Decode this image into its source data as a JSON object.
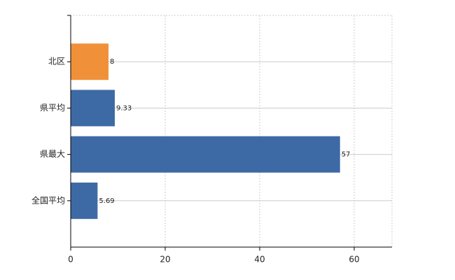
{
  "chart_data": {
    "type": "bar",
    "orientation": "horizontal",
    "categories": [
      "北区",
      "県平均",
      "県最大",
      "全国平均"
    ],
    "values": [
      8,
      9.33,
      57,
      5.69
    ],
    "colors": [
      "#f0913a",
      "#3d6aa5",
      "#3d6aa5",
      "#3d6aa5"
    ],
    "xlim": [
      0,
      68
    ],
    "xticks": [
      0,
      20,
      40,
      60
    ],
    "grid": true
  }
}
